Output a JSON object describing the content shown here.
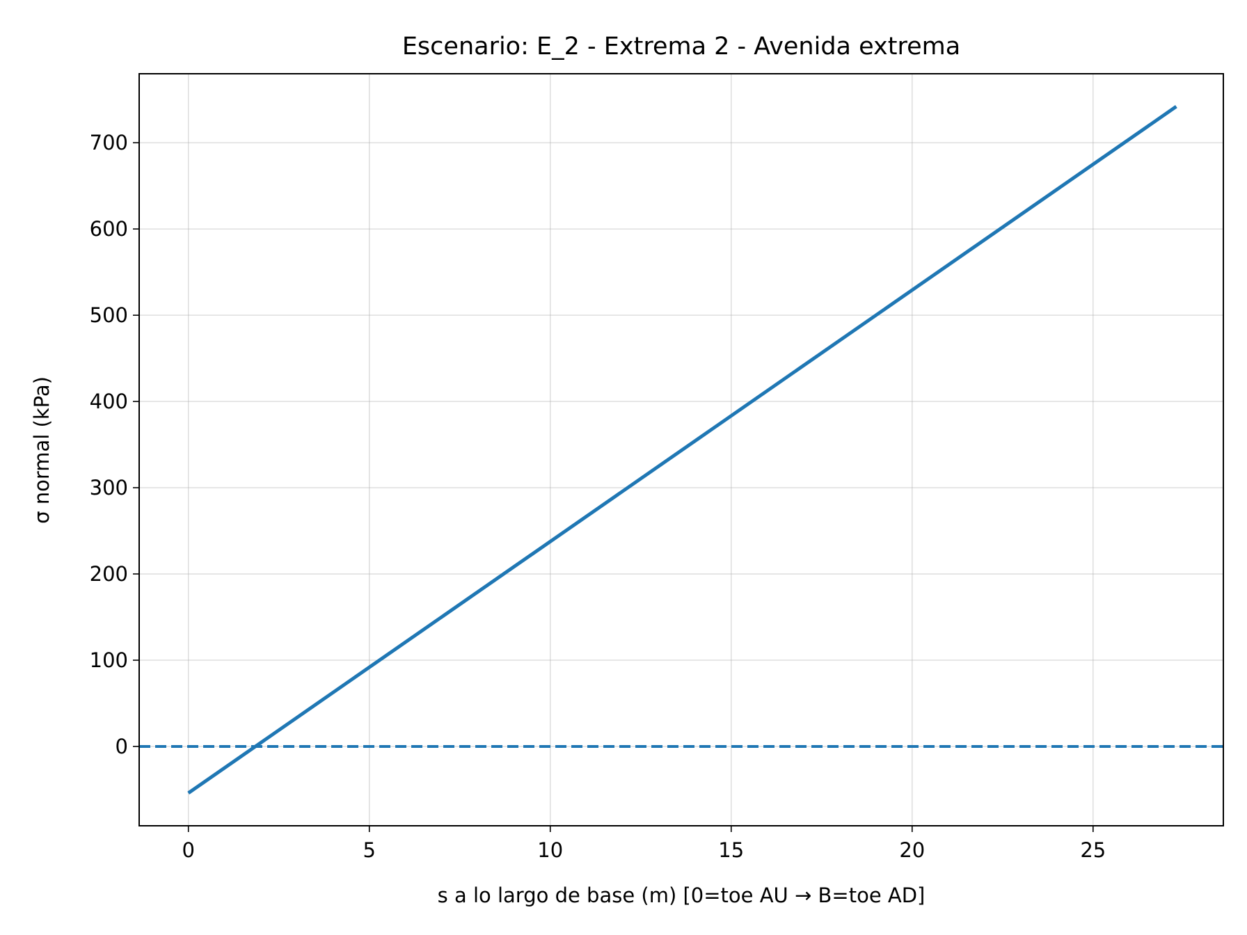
{
  "chart_data": {
    "type": "line",
    "title": "Escenario: E_2 - Extrema 2 - Avenida extrema",
    "xlabel": "s a lo largo de base (m)  [0=toe AU → B=toe AD]",
    "ylabel": "σ normal (kPa)",
    "xlim": [
      -1.36,
      28.6
    ],
    "ylim": [
      -92,
      780
    ],
    "xticks": [
      0,
      5,
      10,
      15,
      20,
      25
    ],
    "yticks": [
      0,
      100,
      200,
      300,
      400,
      500,
      600,
      700
    ],
    "grid": true,
    "series": [
      {
        "color": "#1f77b4",
        "style": "solid",
        "x": [
          0,
          27.3
        ],
        "y": [
          -54,
          742
        ]
      }
    ],
    "reference_line": {
      "y": 0,
      "style": "dashed",
      "color": "#1f77b4"
    }
  }
}
